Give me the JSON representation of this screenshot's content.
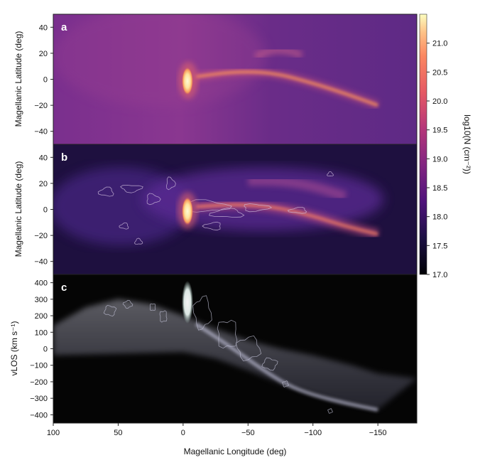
{
  "figure": {
    "xlabel": "Magellanic Longitude (deg)",
    "colorbar_label": "log10(N (cm⁻²))",
    "colorbar_ticks": [
      17.0,
      17.5,
      18.0,
      18.5,
      19.0,
      19.5,
      20.0,
      20.5,
      21.0
    ],
    "colorbar_range": [
      17.0,
      21.5
    ],
    "colors": {
      "panel_a_bg": "#6b2a86",
      "panel_b_bg": "#1c0f3c",
      "panel_c_bg": "#050505",
      "stream_hot": "#f08a52",
      "core": "#fff2b8",
      "contour": "#c9b6d8"
    }
  },
  "chart_data": [
    {
      "type": "heatmap",
      "panel_label": "a",
      "ylabel": "Magellanic Latitude (deg)",
      "xlim": [
        100,
        -180
      ],
      "ylim": [
        -50,
        50
      ],
      "xticks": [
        100,
        50,
        0,
        -50,
        -100,
        -150
      ],
      "yticks": [
        40,
        20,
        0,
        -20,
        -40
      ],
      "colorbar": "log10 column density",
      "features": {
        "clouds_center": [
          3,
          0
        ],
        "stream_path": [
          [
            -10,
            2
          ],
          [
            -40,
            6
          ],
          [
            -70,
            5
          ],
          [
            -100,
            -3
          ],
          [
            -125,
            -11
          ],
          [
            -150,
            -20
          ]
        ],
        "secondary_arm": [
          [
            -55,
            20
          ],
          [
            -70,
            19
          ],
          [
            -85,
            15
          ]
        ]
      }
    },
    {
      "type": "heatmap",
      "panel_label": "b",
      "ylabel": "Magellanic Latitude (deg)",
      "xlim": [
        100,
        -180
      ],
      "ylim": [
        -50,
        50
      ],
      "xticks": [
        100,
        50,
        0,
        -50,
        -100,
        -150
      ],
      "yticks": [
        40,
        20,
        0,
        -20,
        -40
      ],
      "features": {
        "clouds_center": [
          3,
          0
        ],
        "stream_path": [
          [
            -10,
            2
          ],
          [
            -40,
            4
          ],
          [
            -70,
            2
          ],
          [
            -100,
            -5
          ],
          [
            -125,
            -13
          ],
          [
            -150,
            -19
          ]
        ],
        "upper_arm": [
          [
            -50,
            22
          ],
          [
            -75,
            22
          ],
          [
            -100,
            18
          ],
          [
            -125,
            10
          ]
        ]
      }
    },
    {
      "type": "heatmap",
      "panel_label": "c",
      "ylabel": "vLOS (km s⁻¹)",
      "xlim": [
        100,
        -180
      ],
      "ylim": [
        -450,
        450
      ],
      "xticks": [
        100,
        50,
        0,
        -50,
        -100,
        -150
      ],
      "yticks": [
        400,
        300,
        200,
        100,
        0,
        -100,
        -200,
        -300,
        -400
      ],
      "features": {
        "clouds_velocity_range": [
          200,
          400
        ],
        "upper_envelope": [
          [
            100,
            140
          ],
          [
            75,
            250
          ],
          [
            50,
            300
          ],
          [
            25,
            270
          ],
          [
            0,
            200
          ],
          [
            -25,
            120
          ],
          [
            -50,
            50
          ],
          [
            -75,
            0
          ],
          [
            -100,
            -40
          ],
          [
            -130,
            -100
          ],
          [
            -150,
            -150
          ],
          [
            -180,
            -180
          ]
        ],
        "lower_envelope": [
          [
            100,
            -40
          ],
          [
            50,
            -30
          ],
          [
            0,
            -20
          ],
          [
            -25,
            -60
          ],
          [
            -50,
            -130
          ],
          [
            -75,
            -210
          ],
          [
            -100,
            -270
          ],
          [
            -120,
            -320
          ],
          [
            -150,
            -370
          ]
        ],
        "stream_line": [
          [
            -10,
            150
          ],
          [
            -35,
            20
          ],
          [
            -60,
            -120
          ],
          [
            -80,
            -220
          ],
          [
            -100,
            -280
          ],
          [
            -125,
            -330
          ],
          [
            -150,
            -370
          ]
        ]
      }
    }
  ]
}
